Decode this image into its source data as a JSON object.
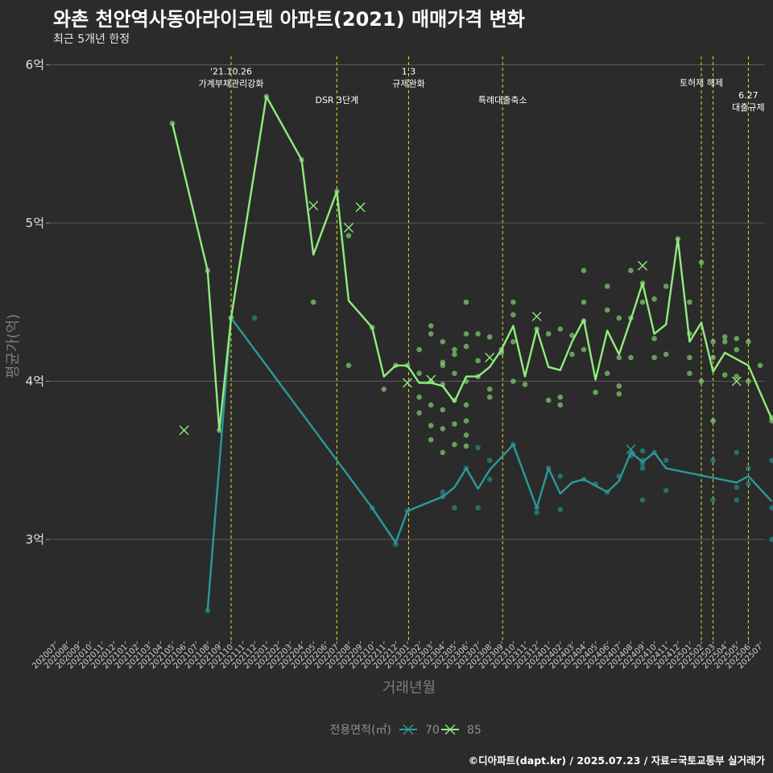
{
  "header": {
    "title": "와촌 천안역사동아라이크텐 아파트(2021) 매매가격 변화",
    "subtitle": "최근 5개년 한정",
    "caption": "©디아파트(dapt.kr) / 2025.07.23 / 자료=국토교통부 실거래가"
  },
  "colors": {
    "background": "#2b2b2b",
    "grid": "#5a5a5a",
    "event_line": "#d8e01e",
    "series_70": "#2a9a99",
    "series_85": "#90ec7d"
  },
  "chart_data": {
    "type": "line",
    "xlabel": "거래년월",
    "ylabel": "평균가(억)",
    "ylim": [
      2.4,
      6.05
    ],
    "y_ticks": [
      3,
      4,
      5,
      6
    ],
    "y_tick_labels": [
      "3억",
      "4억",
      "5억",
      "6억"
    ],
    "grid": true,
    "legend": {
      "position": "bottom",
      "title": "전용면적(㎡)",
      "entries": [
        "70",
        "85"
      ]
    },
    "x_categories": [
      "202007",
      "202008",
      "202009",
      "202010",
      "202011",
      "202012",
      "202101",
      "202102",
      "202103",
      "202104",
      "202105",
      "202106",
      "202107",
      "202108",
      "202109",
      "202110",
      "202111",
      "202112",
      "202201",
      "202202",
      "202203",
      "202204",
      "202205",
      "202206",
      "202207",
      "202208",
      "202209",
      "202210",
      "202211",
      "202212",
      "202301",
      "202302",
      "202303",
      "202304",
      "202305",
      "202306",
      "202307",
      "202308",
      "202309",
      "202310",
      "202311",
      "202312",
      "202401",
      "202402",
      "202403",
      "202404",
      "202405",
      "202406",
      "202407",
      "202408",
      "202409",
      "202410",
      "202411",
      "202412",
      "202501",
      "202502",
      "202503",
      "202504",
      "202505",
      "202506",
      "202507"
    ],
    "events": [
      {
        "x": 15.0,
        "lines": [
          "'21.10.26",
          "가계부채관리강화"
        ],
        "label_y": 6.0
      },
      {
        "x": 24.0,
        "lines": [
          "DSR 3단계"
        ],
        "label_y": 5.82
      },
      {
        "x": 30.1,
        "lines": [
          "1.3",
          "규제완화"
        ],
        "label_y": 6.0
      },
      {
        "x": 38.1,
        "lines": [
          "특례대출축소"
        ],
        "label_y": 5.82
      },
      {
        "x": 55.0,
        "lines": [
          "토허제 해제"
        ],
        "label_y": 5.93
      },
      {
        "x": 56.0,
        "lines": [],
        "label_y": 5.93
      },
      {
        "x": 59.0,
        "lines": [
          "6.27",
          "대출규제"
        ],
        "label_y": 5.85
      }
    ],
    "series": [
      {
        "name": "70",
        "line": [
          [
            13,
            2.55
          ],
          [
            15,
            4.4
          ],
          [
            27,
            3.2
          ],
          [
            29,
            2.98
          ],
          [
            30,
            3.18
          ],
          [
            33,
            3.27
          ],
          [
            34,
            3.33
          ],
          [
            35,
            3.45
          ],
          [
            36,
            3.32
          ],
          [
            37,
            3.44
          ],
          [
            39,
            3.6
          ],
          [
            41,
            3.2
          ],
          [
            42,
            3.45
          ],
          [
            43,
            3.29
          ],
          [
            44,
            3.36
          ],
          [
            45,
            3.38
          ],
          [
            46,
            3.34
          ],
          [
            47,
            3.3
          ],
          [
            48,
            3.37
          ],
          [
            49,
            3.55
          ],
          [
            50,
            3.49
          ],
          [
            51,
            3.55
          ],
          [
            52,
            3.45
          ],
          [
            58,
            3.36
          ],
          [
            59,
            3.4
          ],
          [
            61,
            3.24
          ]
        ],
        "points": [
          [
            13,
            2.55
          ],
          [
            15,
            4.4
          ],
          [
            17,
            4.4
          ],
          [
            27,
            3.2
          ],
          [
            29,
            2.97
          ],
          [
            30,
            3.18
          ],
          [
            33,
            3.27
          ],
          [
            33,
            3.3
          ],
          [
            34,
            3.2
          ],
          [
            35,
            3.45
          ],
          [
            36,
            3.2
          ],
          [
            36,
            3.58
          ],
          [
            37,
            3.38
          ],
          [
            37,
            3.5
          ],
          [
            39,
            3.6
          ],
          [
            41,
            3.2
          ],
          [
            41,
            3.17
          ],
          [
            42,
            3.45
          ],
          [
            43,
            3.19
          ],
          [
            43,
            3.4
          ],
          [
            45,
            3.38
          ],
          [
            46,
            3.35
          ],
          [
            47,
            3.3
          ],
          [
            48,
            3.4
          ],
          [
            49,
            3.53
          ],
          [
            49,
            3.55
          ],
          [
            50,
            3.48
          ],
          [
            50,
            3.5
          ],
          [
            50,
            3.45
          ],
          [
            50,
            3.56
          ],
          [
            50,
            3.25
          ],
          [
            51,
            3.55
          ],
          [
            52,
            3.5
          ],
          [
            52,
            3.31
          ],
          [
            56,
            3.25
          ],
          [
            56,
            3.5
          ],
          [
            58,
            3.25
          ],
          [
            58,
            3.33
          ],
          [
            58,
            3.55
          ],
          [
            59,
            3.35
          ],
          [
            59,
            3.45
          ],
          [
            61,
            3.5
          ],
          [
            61,
            3.2
          ],
          [
            61,
            3.0
          ]
        ],
        "crosses": [
          [
            49,
            3.57
          ]
        ]
      },
      {
        "name": "85",
        "line": [
          [
            10,
            5.63
          ],
          [
            13,
            4.7
          ],
          [
            14,
            3.69
          ],
          [
            15,
            4.4
          ],
          [
            18,
            5.8
          ],
          [
            21,
            5.4
          ],
          [
            22,
            4.8
          ],
          [
            24,
            5.2
          ],
          [
            25,
            4.51
          ],
          [
            27,
            4.34
          ],
          [
            28,
            4.03
          ],
          [
            29,
            4.1
          ],
          [
            30,
            4.1
          ],
          [
            31,
            3.99
          ],
          [
            32,
            3.99
          ],
          [
            33,
            3.97
          ],
          [
            34,
            3.87
          ],
          [
            35,
            4.03
          ],
          [
            36,
            4.03
          ],
          [
            37,
            4.09
          ],
          [
            38,
            4.2
          ],
          [
            39,
            4.35
          ],
          [
            40,
            4.03
          ],
          [
            41,
            4.33
          ],
          [
            42,
            4.09
          ],
          [
            43,
            4.07
          ],
          [
            44,
            4.25
          ],
          [
            45,
            4.39
          ],
          [
            46,
            4.01
          ],
          [
            47,
            4.32
          ],
          [
            48,
            4.17
          ],
          [
            49,
            4.39
          ],
          [
            50,
            4.62
          ],
          [
            51,
            4.3
          ],
          [
            52,
            4.36
          ],
          [
            53,
            4.9
          ],
          [
            54,
            4.25
          ],
          [
            55,
            4.37
          ],
          [
            56,
            4.06
          ],
          [
            57,
            4.18
          ],
          [
            59,
            4.1
          ],
          [
            61,
            3.76
          ]
        ],
        "points": [
          [
            10,
            5.63
          ],
          [
            13,
            4.7
          ],
          [
            14,
            3.69
          ],
          [
            15,
            4.4
          ],
          [
            18,
            5.8
          ],
          [
            21,
            5.4
          ],
          [
            22,
            4.5
          ],
          [
            24,
            5.2
          ],
          [
            25,
            4.92
          ],
          [
            25,
            4.1
          ],
          [
            27,
            4.34
          ],
          [
            28,
            3.95
          ],
          [
            29,
            4.1
          ],
          [
            30,
            4.1
          ],
          [
            31,
            3.9
          ],
          [
            31,
            4.2
          ],
          [
            31,
            4.05
          ],
          [
            31,
            3.8
          ],
          [
            32,
            4.35
          ],
          [
            32,
            4.3
          ],
          [
            32,
            4.0
          ],
          [
            32,
            3.72
          ],
          [
            32,
            3.63
          ],
          [
            32,
            3.85
          ],
          [
            33,
            4.25
          ],
          [
            33,
            4.12
          ],
          [
            33,
            4.1
          ],
          [
            33,
            3.98
          ],
          [
            33,
            3.82
          ],
          [
            33,
            3.7
          ],
          [
            33,
            3.55
          ],
          [
            34,
            4.05
          ],
          [
            34,
            4.17
          ],
          [
            34,
            4.2
          ],
          [
            34,
            3.88
          ],
          [
            34,
            3.6
          ],
          [
            34,
            3.73
          ],
          [
            35,
            4.3
          ],
          [
            35,
            4.5
          ],
          [
            35,
            4.22
          ],
          [
            35,
            4.0
          ],
          [
            35,
            3.75
          ],
          [
            35,
            3.66
          ],
          [
            35,
            3.59
          ],
          [
            35,
            3.85
          ],
          [
            36,
            4.03
          ],
          [
            36,
            4.13
          ],
          [
            36,
            4.3
          ],
          [
            37,
            3.9
          ],
          [
            37,
            3.95
          ],
          [
            37,
            4.28
          ],
          [
            38,
            4.2
          ],
          [
            38,
            4.18
          ],
          [
            39,
            4.5
          ],
          [
            39,
            4.42
          ],
          [
            39,
            4.0
          ],
          [
            39,
            4.25
          ],
          [
            40,
            3.98
          ],
          [
            41,
            4.33
          ],
          [
            42,
            4.3
          ],
          [
            42,
            3.88
          ],
          [
            43,
            4.33
          ],
          [
            43,
            3.9
          ],
          [
            43,
            3.85
          ],
          [
            44,
            4.17
          ],
          [
            44,
            4.29
          ],
          [
            45,
            4.7
          ],
          [
            45,
            4.5
          ],
          [
            45,
            4.2
          ],
          [
            45,
            4.38
          ],
          [
            46,
            3.93
          ],
          [
            47,
            4.6
          ],
          [
            47,
            4.45
          ],
          [
            47,
            4.05
          ],
          [
            48,
            4.4
          ],
          [
            48,
            4.15
          ],
          [
            48,
            3.92
          ],
          [
            48,
            3.97
          ],
          [
            49,
            4.7
          ],
          [
            49,
            4.4
          ],
          [
            49,
            4.15
          ],
          [
            50,
            4.5
          ],
          [
            50,
            4.62
          ],
          [
            51,
            4.52
          ],
          [
            51,
            4.27
          ],
          [
            51,
            4.15
          ],
          [
            52,
            4.6
          ],
          [
            52,
            4.17
          ],
          [
            53,
            4.9
          ],
          [
            54,
            4.5
          ],
          [
            54,
            4.3
          ],
          [
            54,
            4.15
          ],
          [
            54,
            4.05
          ],
          [
            55,
            4.75
          ],
          [
            55,
            4.0
          ],
          [
            56,
            3.75
          ],
          [
            56,
            4.25
          ],
          [
            56,
            4.15
          ],
          [
            57,
            4.28
          ],
          [
            57,
            4.25
          ],
          [
            57,
            4.04
          ],
          [
            58,
            4.2
          ],
          [
            58,
            4.27
          ],
          [
            58,
            4.03
          ],
          [
            59,
            4.25
          ],
          [
            59,
            4.0
          ],
          [
            60,
            4.1
          ],
          [
            61,
            3.77
          ],
          [
            61,
            3.75
          ]
        ],
        "crosses": [
          [
            11,
            3.69
          ],
          [
            22,
            5.11
          ],
          [
            25,
            4.97
          ],
          [
            26,
            5.1
          ],
          [
            30,
            3.99
          ],
          [
            32,
            4.01
          ],
          [
            37,
            4.15
          ],
          [
            41,
            4.41
          ],
          [
            50,
            4.73
          ],
          [
            58,
            4.0
          ]
        ]
      }
    ]
  }
}
